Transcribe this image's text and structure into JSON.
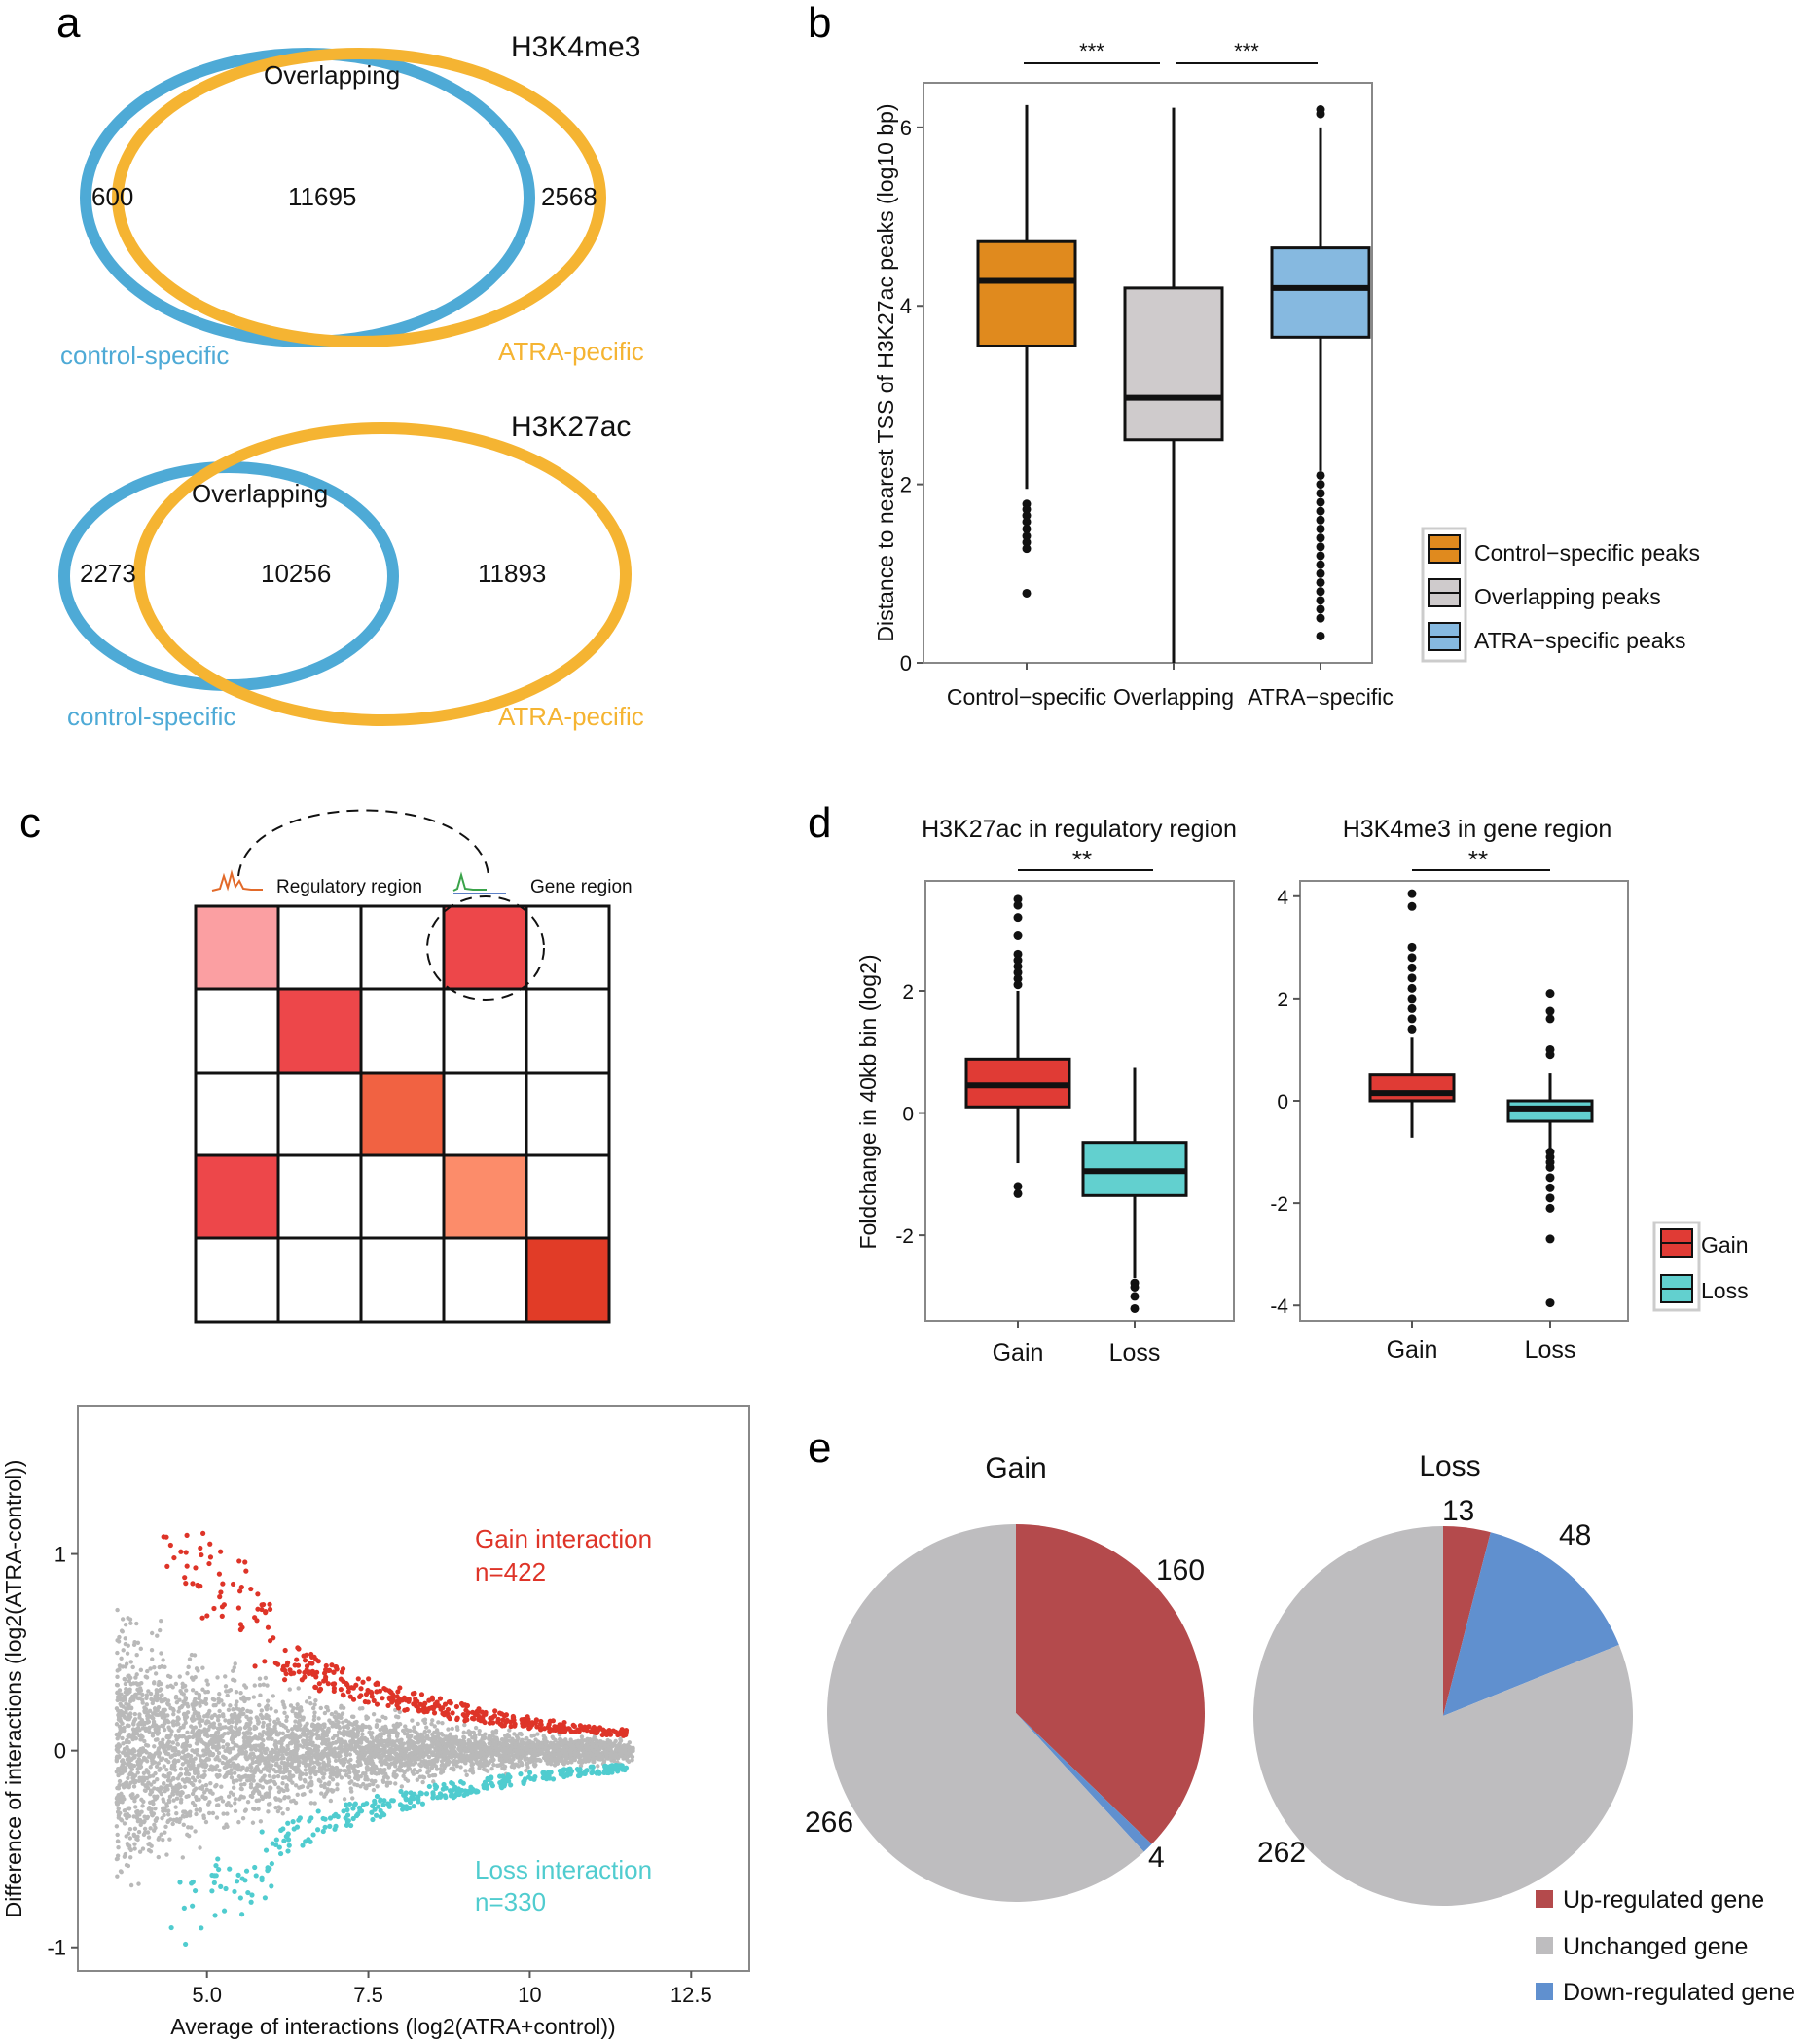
{
  "colors": {
    "control": "#e08a1e",
    "overlap": "#cfcbcc",
    "atra": "#86b9e0",
    "venn_blue": "#4eaad6",
    "venn_orange": "#f5b432",
    "gain_box": "#e03b35",
    "loss_box": "#62d0cf",
    "gain_pt": "#de3428",
    "loss_pt": "#50cccf",
    "grey_pt": "#b9b9b9",
    "up": "#b44a4c",
    "unchanged": "#bebdbf",
    "down": "#6090cf",
    "heat1": "#fb9fa2",
    "heat2": "#ed474a",
    "heat3": "#f16242",
    "heat4": "#fc8c6a",
    "heat5": "#e13c27"
  },
  "panel_labels": {
    "a": "a",
    "b": "b",
    "c": "c",
    "d": "d",
    "e": "e"
  },
  "venn": [
    {
      "title": "H3K4me3",
      "overlap_label": "Overlapping",
      "left_count": "600",
      "overlap_count": "11695",
      "right_count": "2568",
      "left_label": "control-specific",
      "right_label": "ATRA-pecific"
    },
    {
      "title": "H3K27ac",
      "overlap_label": "Overlapping",
      "left_count": "2273",
      "overlap_count": "10256",
      "right_count": "11893",
      "left_label": "control-specific",
      "right_label": "ATRA-pecific"
    }
  ],
  "diagram": {
    "regulatory_label": "Regulatory region",
    "gene_label": "Gene region"
  },
  "chart_data": [
    {
      "id": "b",
      "type": "box",
      "ylabel": "Distance to nearest TSS of H3K27ac peaks (log10 bp)",
      "ylim": [
        0,
        6.5
      ],
      "yticks": [
        0,
        2,
        4,
        6
      ],
      "categories": [
        "Control−specific",
        "Overlapping",
        "ATRA−specific"
      ],
      "series": [
        {
          "name": "Control−specific peaks",
          "colorKey": "control",
          "q1": 3.55,
          "median": 4.28,
          "q3": 4.72,
          "min": 1.95,
          "max": 6.25,
          "outliers": [
            1.78,
            1.72,
            1.65,
            1.58,
            1.5,
            1.42,
            1.35,
            1.28,
            0.78
          ]
        },
        {
          "name": "Overlapping peaks",
          "colorKey": "overlap",
          "q1": 2.5,
          "median": 2.97,
          "q3": 4.2,
          "min": 0.0,
          "max": 6.22,
          "outliers": []
        },
        {
          "name": "ATRA−specific peaks",
          "colorKey": "atra",
          "q1": 3.65,
          "median": 4.2,
          "q3": 4.65,
          "min": 2.15,
          "max": 6.0,
          "outliers": [
            6.2,
            6.15,
            2.1,
            2.0,
            1.9,
            1.8,
            1.7,
            1.6,
            1.5,
            1.4,
            1.3,
            1.2,
            1.1,
            1.0,
            0.9,
            0.8,
            0.7,
            0.6,
            0.5,
            0.3
          ]
        }
      ],
      "significance": [
        "***",
        "***"
      ]
    },
    {
      "id": "d1",
      "type": "box",
      "title": "H3K27ac in regulatory region",
      "ylabel": "Foldchange in 40kb bin (log2)",
      "ylim": [
        -3.4,
        3.8
      ],
      "yticks": [
        -2,
        0,
        2
      ],
      "categories": [
        "Gain",
        "Loss"
      ],
      "series": [
        {
          "name": "Gain",
          "colorKey": "gain_box",
          "q1": 0.1,
          "median": 0.45,
          "q3": 0.88,
          "min": -0.82,
          "max": 2.0,
          "outliers": [
            3.5,
            3.4,
            3.2,
            2.9,
            2.6,
            2.5,
            2.4,
            2.3,
            2.2,
            2.1,
            -1.2,
            -1.32
          ]
        },
        {
          "name": "Loss",
          "colorKey": "loss_box",
          "q1": -1.35,
          "median": -0.95,
          "q3": -0.48,
          "min": -2.7,
          "max": 0.75,
          "outliers": [
            -2.78,
            -2.85,
            -3.0,
            -3.2
          ]
        }
      ],
      "significance": "**"
    },
    {
      "id": "d2",
      "type": "box",
      "title": "H3K4me3 in gene region",
      "ylim": [
        -4.3,
        4.3
      ],
      "yticks": [
        -4,
        -2,
        0,
        2,
        4
      ],
      "categories": [
        "Gain",
        "Loss"
      ],
      "series": [
        {
          "name": "Gain",
          "colorKey": "gain_box",
          "q1": 0.0,
          "median": 0.15,
          "q3": 0.52,
          "min": -0.72,
          "max": 1.25,
          "outliers": [
            4.05,
            3.8,
            3.0,
            2.8,
            2.6,
            2.4,
            2.2,
            2.0,
            1.8,
            1.6,
            1.4
          ]
        },
        {
          "name": "Loss",
          "colorKey": "loss_box",
          "q1": -0.4,
          "median": -0.15,
          "q3": 0.0,
          "min": -0.95,
          "max": 0.55,
          "outliers": [
            2.1,
            1.75,
            1.6,
            1.0,
            0.9,
            -1.0,
            -1.1,
            -1.2,
            -1.3,
            -1.5,
            -1.7,
            -1.9,
            -2.1,
            -2.7,
            -3.95
          ]
        }
      ],
      "significance": "**"
    },
    {
      "id": "c_ma",
      "type": "scatter",
      "xlabel": "Average of interactions (log2(ATRA+control))",
      "ylabel": "Difference of interactions (log2(ATRA-control))",
      "xlim": [
        3.0,
        13.4
      ],
      "ylim": [
        -1.12,
        1.75
      ],
      "xticks": [
        5.0,
        7.5,
        10,
        12.5
      ],
      "xtick_labels": [
        "5.0",
        "7.5",
        "10",
        "12.5"
      ],
      "yticks": [
        -1,
        0,
        1
      ],
      "ytick_labels": [
        "-1",
        "0",
        "1"
      ],
      "annotations": [
        {
          "text": "Gain interaction",
          "colorKey": "gain_pt"
        },
        {
          "text": "n=422",
          "colorKey": "gain_pt"
        },
        {
          "text": "Loss interaction",
          "colorKey": "loss_pt"
        },
        {
          "text": "n=330",
          "colorKey": "loss_pt"
        }
      ],
      "gain_n": 422,
      "loss_n": 330
    },
    {
      "id": "e1",
      "type": "pie",
      "title": "Gain",
      "slices": [
        {
          "label": "160",
          "value": 160,
          "colorKey": "up"
        },
        {
          "label": "4",
          "value": 4,
          "colorKey": "down"
        },
        {
          "label": "266",
          "value": 266,
          "colorKey": "unchanged"
        }
      ]
    },
    {
      "id": "e2",
      "type": "pie",
      "title": "Loss",
      "slices": [
        {
          "label": "13",
          "value": 13,
          "colorKey": "up"
        },
        {
          "label": "48",
          "value": 48,
          "colorKey": "down"
        },
        {
          "label": "262",
          "value": 262,
          "colorKey": "unchanged"
        }
      ]
    }
  ],
  "legend_b": [
    "Control−specific peaks",
    "Overlapping peaks",
    "ATRA−specific peaks"
  ],
  "legend_d": [
    "Gain",
    "Loss"
  ],
  "legend_e": [
    "Up-regulated gene",
    "Unchanged gene",
    "Down-regulated gene"
  ]
}
